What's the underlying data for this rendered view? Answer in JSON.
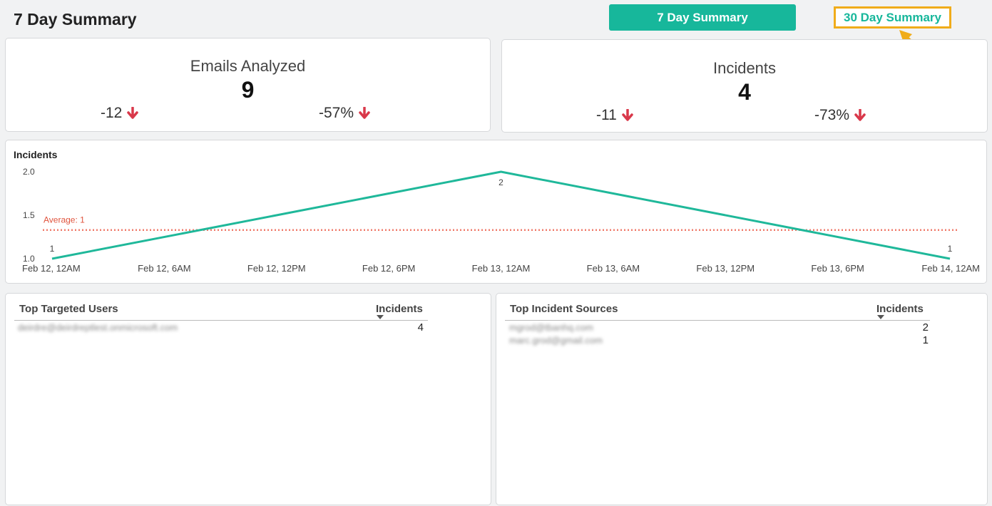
{
  "page": {
    "title": "7 Day Summary"
  },
  "header": {
    "btn_7day": "7 Day Summary",
    "btn_30day": "30 Day Summary"
  },
  "cards": {
    "emails": {
      "title": "Emails Analyzed",
      "value": "9",
      "delta_abs": "-12",
      "delta_pct": "-57%"
    },
    "incidents": {
      "title": "Incidents",
      "value": "4",
      "delta_abs": "-11",
      "delta_pct": "-73%"
    }
  },
  "chart_panel": {
    "title": "Incidents"
  },
  "chart_data": {
    "type": "line",
    "title": "Incidents",
    "x": [
      "Feb 12, 12AM",
      "Feb 12, 6AM",
      "Feb 12, 12PM",
      "Feb 12, 6PM",
      "Feb 13, 12AM",
      "Feb 13, 6AM",
      "Feb 13, 12PM",
      "Feb 13, 6PM",
      "Feb 14, 12AM"
    ],
    "points": [
      {
        "x": "Feb 12, 12AM",
        "y": 1,
        "label": "1"
      },
      {
        "x": "Feb 13, 12AM",
        "y": 2,
        "label": "2"
      },
      {
        "x": "Feb 14, 12AM",
        "y": 1,
        "label": "1"
      }
    ],
    "yticks": [
      "2.0",
      "1.5",
      "1.0"
    ],
    "ylim": [
      1.0,
      2.0
    ],
    "average": {
      "label": "Average: 1",
      "value": 1.33
    },
    "colors": {
      "line": "#1fb89a",
      "average": "#f07c6c",
      "average_text": "#e0533c"
    }
  },
  "targeted_users": {
    "title": "Top Targeted Users",
    "column": "Incidents",
    "rows": [
      {
        "name": "deirdre@deirdreptlest.onmicrosoft.com",
        "count": "4"
      }
    ]
  },
  "incident_sources": {
    "title": "Top Incident Sources",
    "column": "Incidents",
    "rows": [
      {
        "name": "mgrod@tbanhq.com",
        "count": "2"
      },
      {
        "name": "marc.grod@gmail.com",
        "count": "1"
      }
    ]
  },
  "colors": {
    "accent": "#17b79b",
    "down": "#d9384a",
    "annotation": "#f0ac1a"
  }
}
